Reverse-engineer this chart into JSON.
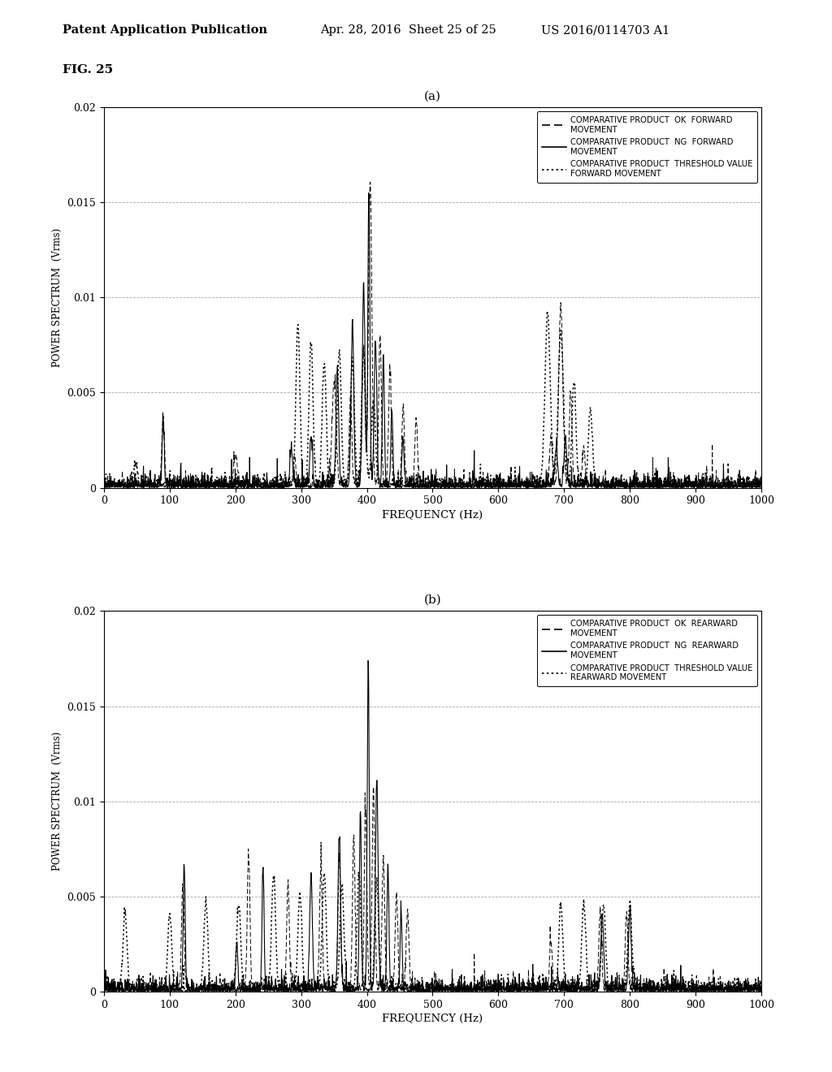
{
  "fig_label": "FIG. 25",
  "header_left": "Patent Application Publication",
  "header_mid": "Apr. 28, 2016  Sheet 25 of 25",
  "header_right": "US 2016/0114703 A1",
  "subplot_a_title": "(a)",
  "subplot_b_title": "(b)",
  "xlabel": "FREQUENCY (Hz)",
  "ylabel": "POWER SPECTRUM  (Vrms)",
  "xlim": [
    0,
    1000
  ],
  "ylim": [
    0,
    0.02
  ],
  "ytick_labels": [
    "0",
    "0.005",
    "0.01",
    "0.015",
    "0.02"
  ],
  "ytick_vals": [
    0,
    0.005,
    0.01,
    0.015,
    0.02
  ],
  "xticks": [
    0,
    100,
    200,
    300,
    400,
    500,
    600,
    700,
    800,
    900,
    1000
  ],
  "legend_a": [
    "COMPARATIVE PRODUCT  OK  FORWARD\nMOVEMENT",
    "COMPARATIVE PRODUCT  NG  FORWARD\nMOVEMENT",
    "COMPARATIVE PRODUCT  THRESHOLD VALUE\nFORWARD MOVEMENT"
  ],
  "legend_b": [
    "COMPARATIVE PRODUCT  OK  REARWARD\nMOVEMENT",
    "COMPARATIVE PRODUCT  NG  REARWARD\nMOVEMENT",
    "COMPARATIVE PRODUCT  THRESHOLD VALUE\nREARWARD MOVEMENT"
  ],
  "background_color": "#ffffff",
  "plot_bg": "#ffffff",
  "grid_color": "#999999"
}
